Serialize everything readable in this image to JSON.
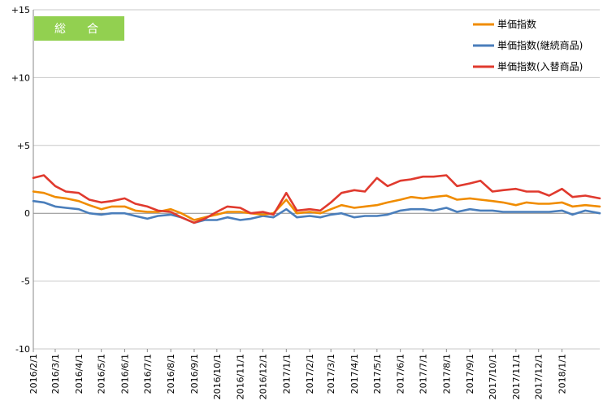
{
  "chart_data": {
    "type": "line",
    "badge": "総　合",
    "title": "",
    "xlabel": "",
    "ylabel": "",
    "ylim": [
      -10,
      15
    ],
    "y_ticks": [
      {
        "value": 15,
        "label": "+15"
      },
      {
        "value": 10,
        "label": "+10"
      },
      {
        "value": 5,
        "label": "+5"
      },
      {
        "value": 0,
        "label": "0"
      },
      {
        "value": -5,
        "label": "-5"
      },
      {
        "value": -10,
        "label": "-10"
      }
    ],
    "x_range": [
      "2016-02-01",
      "2018-02-20"
    ],
    "x_tick_labels": [
      "2016/2/1",
      "2016/3/1",
      "2016/4/1",
      "2016/5/1",
      "2016/6/1",
      "2016/7/1",
      "2016/8/1",
      "2016/9/1",
      "2016/10/1",
      "2016/11/1",
      "2016/12/1",
      "2017/1/1",
      "2017/2/1",
      "2017/3/1",
      "2017/4/1",
      "2017/5/1",
      "2017/6/1",
      "2017/7/1",
      "2017/8/1",
      "2017/9/1",
      "2017/10/1",
      "2017/11/1",
      "2017/12/1",
      "2018/1/1"
    ],
    "grid": "horizontal",
    "legend_position": "top-right",
    "series": [
      {
        "name": "単価指数",
        "color": "#F08C00",
        "points": [
          [
            "2016-02-01",
            1.6
          ],
          [
            "2016-02-15",
            1.5
          ],
          [
            "2016-03-01",
            1.2
          ],
          [
            "2016-03-15",
            1.1
          ],
          [
            "2016-04-01",
            0.9
          ],
          [
            "2016-04-15",
            0.6
          ],
          [
            "2016-05-01",
            0.3
          ],
          [
            "2016-05-15",
            0.5
          ],
          [
            "2016-06-01",
            0.5
          ],
          [
            "2016-06-15",
            0.2
          ],
          [
            "2016-07-01",
            0.1
          ],
          [
            "2016-07-15",
            0.1
          ],
          [
            "2016-08-01",
            0.3
          ],
          [
            "2016-08-15",
            0.0
          ],
          [
            "2016-09-01",
            -0.5
          ],
          [
            "2016-09-15",
            -0.3
          ],
          [
            "2016-10-01",
            -0.1
          ],
          [
            "2016-10-15",
            0.1
          ],
          [
            "2016-11-01",
            0.1
          ],
          [
            "2016-11-15",
            0.0
          ],
          [
            "2016-12-01",
            -0.1
          ],
          [
            "2016-12-15",
            0.0
          ],
          [
            "2017-01-01",
            1.0
          ],
          [
            "2017-01-15",
            0.0
          ],
          [
            "2017-02-01",
            0.1
          ],
          [
            "2017-02-15",
            0.0
          ],
          [
            "2017-03-01",
            0.3
          ],
          [
            "2017-03-15",
            0.6
          ],
          [
            "2017-04-01",
            0.4
          ],
          [
            "2017-04-15",
            0.5
          ],
          [
            "2017-05-01",
            0.6
          ],
          [
            "2017-05-15",
            0.8
          ],
          [
            "2017-06-01",
            1.0
          ],
          [
            "2017-06-15",
            1.2
          ],
          [
            "2017-07-01",
            1.1
          ],
          [
            "2017-07-15",
            1.2
          ],
          [
            "2017-08-01",
            1.3
          ],
          [
            "2017-08-15",
            1.0
          ],
          [
            "2017-09-01",
            1.1
          ],
          [
            "2017-09-15",
            1.0
          ],
          [
            "2017-10-01",
            0.9
          ],
          [
            "2017-10-15",
            0.8
          ],
          [
            "2017-11-01",
            0.6
          ],
          [
            "2017-11-15",
            0.8
          ],
          [
            "2017-12-01",
            0.7
          ],
          [
            "2017-12-15",
            0.7
          ],
          [
            "2018-01-01",
            0.8
          ],
          [
            "2018-01-15",
            0.5
          ],
          [
            "2018-02-01",
            0.6
          ],
          [
            "2018-02-20",
            0.5
          ]
        ]
      },
      {
        "name": "単価指数(継続商品)",
        "color": "#4A7EBB",
        "points": [
          [
            "2016-02-01",
            0.9
          ],
          [
            "2016-02-15",
            0.8
          ],
          [
            "2016-03-01",
            0.5
          ],
          [
            "2016-03-15",
            0.4
          ],
          [
            "2016-04-01",
            0.3
          ],
          [
            "2016-04-15",
            0.0
          ],
          [
            "2016-05-01",
            -0.1
          ],
          [
            "2016-05-15",
            0.0
          ],
          [
            "2016-06-01",
            0.0
          ],
          [
            "2016-06-15",
            -0.2
          ],
          [
            "2016-07-01",
            -0.4
          ],
          [
            "2016-07-15",
            -0.2
          ],
          [
            "2016-08-01",
            -0.1
          ],
          [
            "2016-08-15",
            -0.3
          ],
          [
            "2016-09-01",
            -0.7
          ],
          [
            "2016-09-15",
            -0.5
          ],
          [
            "2016-10-01",
            -0.5
          ],
          [
            "2016-10-15",
            -0.3
          ],
          [
            "2016-11-01",
            -0.5
          ],
          [
            "2016-11-15",
            -0.4
          ],
          [
            "2016-12-01",
            -0.2
          ],
          [
            "2016-12-15",
            -0.3
          ],
          [
            "2017-01-01",
            0.3
          ],
          [
            "2017-01-15",
            -0.3
          ],
          [
            "2017-02-01",
            -0.2
          ],
          [
            "2017-02-15",
            -0.3
          ],
          [
            "2017-03-01",
            -0.1
          ],
          [
            "2017-03-15",
            0.0
          ],
          [
            "2017-04-01",
            -0.3
          ],
          [
            "2017-04-15",
            -0.2
          ],
          [
            "2017-05-01",
            -0.2
          ],
          [
            "2017-05-15",
            -0.1
          ],
          [
            "2017-06-01",
            0.2
          ],
          [
            "2017-06-15",
            0.3
          ],
          [
            "2017-07-01",
            0.3
          ],
          [
            "2017-07-15",
            0.2
          ],
          [
            "2017-08-01",
            0.4
          ],
          [
            "2017-08-15",
            0.1
          ],
          [
            "2017-09-01",
            0.3
          ],
          [
            "2017-09-15",
            0.2
          ],
          [
            "2017-10-01",
            0.2
          ],
          [
            "2017-10-15",
            0.1
          ],
          [
            "2017-11-01",
            0.1
          ],
          [
            "2017-11-15",
            0.1
          ],
          [
            "2017-12-01",
            0.1
          ],
          [
            "2017-12-15",
            0.1
          ],
          [
            "2018-01-01",
            0.2
          ],
          [
            "2018-01-15",
            -0.1
          ],
          [
            "2018-02-01",
            0.2
          ],
          [
            "2018-02-20",
            0.0
          ]
        ]
      },
      {
        "name": "単価指数(入替商品)",
        "color": "#E03A2E",
        "points": [
          [
            "2016-02-01",
            2.6
          ],
          [
            "2016-02-15",
            2.8
          ],
          [
            "2016-03-01",
            2.0
          ],
          [
            "2016-03-15",
            1.6
          ],
          [
            "2016-04-01",
            1.5
          ],
          [
            "2016-04-15",
            1.0
          ],
          [
            "2016-05-01",
            0.8
          ],
          [
            "2016-05-15",
            0.9
          ],
          [
            "2016-06-01",
            1.1
          ],
          [
            "2016-06-15",
            0.7
          ],
          [
            "2016-07-01",
            0.5
          ],
          [
            "2016-07-15",
            0.2
          ],
          [
            "2016-08-01",
            0.1
          ],
          [
            "2016-08-15",
            -0.3
          ],
          [
            "2016-09-01",
            -0.7
          ],
          [
            "2016-09-15",
            -0.4
          ],
          [
            "2016-10-01",
            0.1
          ],
          [
            "2016-10-15",
            0.5
          ],
          [
            "2016-11-01",
            0.4
          ],
          [
            "2016-11-15",
            0.0
          ],
          [
            "2016-12-01",
            0.1
          ],
          [
            "2016-12-15",
            -0.1
          ],
          [
            "2017-01-01",
            1.5
          ],
          [
            "2017-01-15",
            0.2
          ],
          [
            "2017-02-01",
            0.3
          ],
          [
            "2017-02-15",
            0.2
          ],
          [
            "2017-03-01",
            0.8
          ],
          [
            "2017-03-15",
            1.5
          ],
          [
            "2017-04-01",
            1.7
          ],
          [
            "2017-04-15",
            1.6
          ],
          [
            "2017-05-01",
            2.6
          ],
          [
            "2017-05-15",
            2.0
          ],
          [
            "2017-06-01",
            2.4
          ],
          [
            "2017-06-15",
            2.5
          ],
          [
            "2017-07-01",
            2.7
          ],
          [
            "2017-07-15",
            2.7
          ],
          [
            "2017-08-01",
            2.8
          ],
          [
            "2017-08-15",
            2.0
          ],
          [
            "2017-09-01",
            2.2
          ],
          [
            "2017-09-15",
            2.4
          ],
          [
            "2017-10-01",
            1.6
          ],
          [
            "2017-10-15",
            1.7
          ],
          [
            "2017-11-01",
            1.8
          ],
          [
            "2017-11-15",
            1.6
          ],
          [
            "2017-12-01",
            1.6
          ],
          [
            "2017-12-15",
            1.3
          ],
          [
            "2018-01-01",
            1.8
          ],
          [
            "2018-01-15",
            1.2
          ],
          [
            "2018-02-01",
            1.3
          ],
          [
            "2018-02-20",
            1.1
          ]
        ]
      }
    ]
  }
}
